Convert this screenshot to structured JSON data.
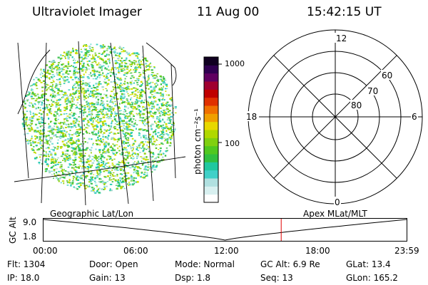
{
  "header": {
    "instrument": "Ultraviolet Imager",
    "date": "11 Aug 00",
    "time": "15:42:15 UT"
  },
  "colorbar": {
    "unit_label": "photon cm⁻²s⁻¹",
    "tick_1000": "1000",
    "tick_100": "100",
    "colors": [
      "#ffffff",
      "#d8f0f0",
      "#b0e0e0",
      "#40d0c8",
      "#20c8a0",
      "#30c040",
      "#50c820",
      "#80d010",
      "#b0d800",
      "#e8d800",
      "#f0a000",
      "#f07000",
      "#e03000",
      "#c00000",
      "#a00030",
      "#600060",
      "#300050",
      "#100020"
    ]
  },
  "polar_plot": {
    "mlt_12": "12",
    "mlt_18": "18",
    "mlt_6": "6",
    "mlt_0": "0",
    "lat_60": "60",
    "lat_70": "70",
    "lat_80": "80"
  },
  "timeline": {
    "left_label": "Geographic Lat/Lon",
    "right_label": "Apex MLat/MLT",
    "axis_title": "GC Alt",
    "y_high": "9.0",
    "y_low": "1.8",
    "times": [
      "00:00",
      "06:00",
      "12:00",
      "18:00",
      "23:59"
    ],
    "marker_fraction": 0.6544
  },
  "status": {
    "flt": "Flt:  1304",
    "ip": "IP:  18.0",
    "door": "Door:  Open",
    "gain": "Gain:  13",
    "mode": "Mode:  Normal",
    "dsp": "Dsp:      1.8",
    "gcalt": "GC Alt:  6.9 Re",
    "seq": "Seq:  13",
    "glat": "GLat:   13.4",
    "glon": "GLon:  165.2"
  }
}
